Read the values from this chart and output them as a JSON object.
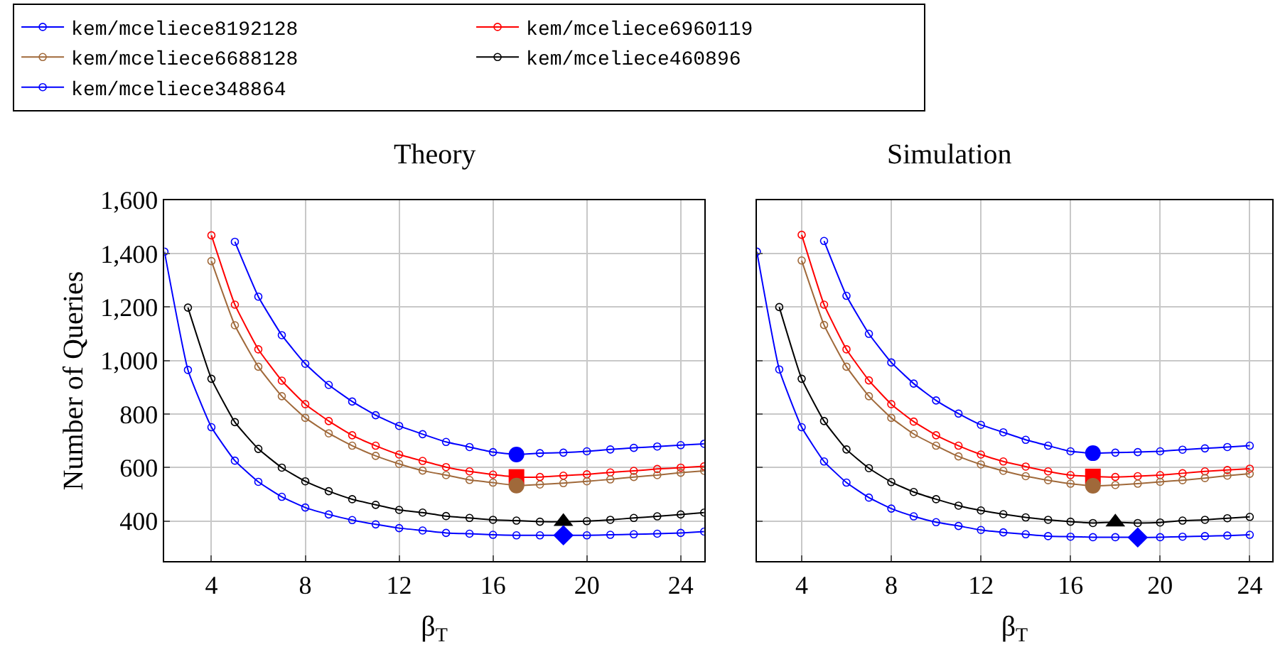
{
  "chart_data": [
    {
      "type": "line",
      "title": "Theory",
      "xlabel": "β$_{T}$",
      "ylabel": "Number of Queries",
      "xlim": [
        2,
        25
      ],
      "ylim": [
        250,
        1600
      ],
      "xticks": [
        4,
        8,
        12,
        16,
        20,
        24
      ],
      "yticks": [
        {
          "value": 400,
          "label": "400"
        },
        {
          "value": 600,
          "label": "600"
        },
        {
          "value": 800,
          "label": "800"
        },
        {
          "value": 1000,
          "label": "1,000"
        },
        {
          "value": 1200,
          "label": "1,200"
        },
        {
          "value": 1400,
          "label": "1,400"
        },
        {
          "value": 1600,
          "label": "1,600"
        }
      ],
      "grid": true,
      "legend": "top",
      "marker": "circle",
      "series": [
        {
          "name": "kem/mceliece8192128",
          "color": "#0000ff",
          "x": [
            5,
            6,
            7,
            8,
            9,
            10,
            11,
            12,
            13,
            14,
            15,
            16,
            17,
            18,
            19,
            20,
            21,
            22,
            23,
            24,
            25
          ],
          "values": [
            1444,
            1239,
            1095,
            988,
            909,
            847,
            796,
            756,
            725,
            696,
            677,
            658,
            649,
            654,
            656,
            661,
            668,
            674,
            679,
            684,
            689
          ]
        },
        {
          "name": "kem/mceliece6960119",
          "color": "#ff0000",
          "x": [
            4,
            5,
            6,
            7,
            8,
            9,
            10,
            11,
            12,
            13,
            14,
            15,
            16,
            17,
            18,
            19,
            20,
            21,
            22,
            23,
            24,
            25
          ],
          "values": [
            1468,
            1209,
            1042,
            925,
            837,
            774,
            721,
            682,
            649,
            625,
            602,
            586,
            574,
            565,
            565,
            570,
            575,
            582,
            588,
            595,
            600,
            605
          ]
        },
        {
          "name": "kem/mceliece6688128",
          "color": "#a0693a",
          "x": [
            4,
            5,
            6,
            7,
            8,
            9,
            10,
            11,
            12,
            13,
            14,
            15,
            16,
            17,
            18,
            19,
            20,
            21,
            22,
            23,
            24,
            25
          ],
          "values": [
            1372,
            1132,
            977,
            867,
            786,
            728,
            682,
            644,
            614,
            589,
            572,
            554,
            544,
            533,
            537,
            542,
            549,
            556,
            565,
            572,
            581,
            588
          ]
        },
        {
          "name": "kem/mceliece460896",
          "color": "#000000",
          "x": [
            3,
            4,
            5,
            6,
            7,
            8,
            9,
            10,
            11,
            12,
            13,
            14,
            15,
            16,
            17,
            18,
            19,
            20,
            21,
            22,
            23,
            24,
            25
          ],
          "values": [
            1198,
            932,
            770,
            670,
            600,
            549,
            512,
            482,
            461,
            442,
            432,
            419,
            412,
            405,
            402,
            398,
            398,
            400,
            405,
            412,
            418,
            425,
            432
          ]
        },
        {
          "name": "kem/mceliece348864",
          "color": "#0000ff",
          "x": [
            2,
            3,
            4,
            5,
            6,
            7,
            8,
            9,
            10,
            11,
            12,
            13,
            14,
            15,
            16,
            17,
            18,
            19,
            20,
            21,
            22,
            23,
            24,
            25
          ],
          "values": [
            1407,
            965,
            751,
            626,
            547,
            491,
            451,
            425,
            404,
            388,
            374,
            365,
            356,
            353,
            349,
            347,
            347,
            347,
            347,
            349,
            351,
            353,
            356,
            361
          ]
        },
        {
          "type": "scatter",
          "marker": "circle",
          "color": "#0000ff",
          "x": [
            17
          ],
          "values": [
            649
          ]
        },
        {
          "type": "scatter",
          "marker": "square",
          "color": "#ff0000",
          "x": [
            17
          ],
          "values": [
            565
          ]
        },
        {
          "type": "scatter",
          "marker": "circle",
          "color": "#a0693a",
          "x": [
            17
          ],
          "values": [
            533
          ]
        },
        {
          "type": "scatter",
          "marker": "triangle",
          "color": "#000000",
          "x": [
            19
          ],
          "values": [
            398
          ]
        },
        {
          "type": "scatter",
          "marker": "diamond",
          "color": "#0000ff",
          "x": [
            19
          ],
          "values": [
            347
          ]
        }
      ]
    },
    {
      "type": "line",
      "title": "Simulation",
      "xlabel": "β$_{T}$",
      "xlim": [
        2,
        25
      ],
      "ylim": [
        250,
        1600
      ],
      "xticks": [
        4,
        8,
        12,
        16,
        20,
        24
      ],
      "yticks": [
        400,
        600,
        800,
        1000,
        1200,
        1400,
        1600
      ],
      "tick_labels": "x",
      "grid": true,
      "marker": "circle",
      "series": [
        {
          "color": "#0000ff",
          "x": [
            5,
            6,
            7,
            8,
            9,
            10,
            11,
            12,
            13,
            14,
            15,
            16,
            17,
            18,
            19,
            20,
            21,
            22,
            23,
            24
          ],
          "values": [
            1447,
            1242,
            1100,
            993,
            914,
            851,
            802,
            760,
            732,
            704,
            682,
            661,
            654,
            656,
            658,
            661,
            667,
            672,
            677,
            682
          ]
        },
        {
          "color": "#ff0000",
          "x": [
            4,
            5,
            6,
            7,
            8,
            9,
            10,
            11,
            12,
            13,
            14,
            15,
            16,
            17,
            18,
            19,
            20,
            21,
            22,
            23,
            24
          ],
          "values": [
            1470,
            1209,
            1042,
            926,
            837,
            772,
            721,
            682,
            649,
            623,
            604,
            586,
            572,
            567,
            565,
            568,
            572,
            579,
            586,
            591,
            596
          ]
        },
        {
          "color": "#a0693a",
          "x": [
            4,
            5,
            6,
            7,
            8,
            9,
            10,
            11,
            12,
            13,
            14,
            15,
            16,
            17,
            18,
            19,
            20,
            21,
            22,
            23,
            24
          ],
          "values": [
            1374,
            1133,
            977,
            867,
            786,
            726,
            682,
            642,
            612,
            588,
            568,
            553,
            540,
            532,
            535,
            540,
            547,
            553,
            561,
            570,
            577
          ]
        },
        {
          "color": "#000000",
          "x": [
            3,
            4,
            5,
            6,
            7,
            8,
            9,
            10,
            11,
            12,
            13,
            14,
            15,
            16,
            17,
            18,
            19,
            20,
            21,
            22,
            23,
            24
          ],
          "values": [
            1200,
            932,
            774,
            668,
            598,
            546,
            509,
            482,
            458,
            440,
            426,
            414,
            405,
            398,
            393,
            396,
            393,
            395,
            402,
            405,
            411,
            416
          ]
        },
        {
          "color": "#0000ff",
          "x": [
            2,
            3,
            4,
            5,
            6,
            7,
            8,
            9,
            10,
            11,
            12,
            13,
            14,
            15,
            16,
            17,
            18,
            19,
            20,
            21,
            22,
            23,
            24
          ],
          "values": [
            1407,
            967,
            751,
            623,
            544,
            488,
            447,
            418,
            396,
            382,
            367,
            358,
            351,
            344,
            342,
            340,
            340,
            339,
            340,
            342,
            344,
            346,
            349
          ]
        },
        {
          "type": "scatter",
          "marker": "circle",
          "color": "#0000ff",
          "x": [
            17
          ],
          "values": [
            654
          ]
        },
        {
          "type": "scatter",
          "marker": "square",
          "color": "#ff0000",
          "x": [
            17
          ],
          "values": [
            567
          ]
        },
        {
          "type": "scatter",
          "marker": "circle",
          "color": "#a0693a",
          "x": [
            17
          ],
          "values": [
            532
          ]
        },
        {
          "type": "scatter",
          "marker": "triangle",
          "color": "#000000",
          "x": [
            18
          ],
          "values": [
            396
          ]
        },
        {
          "type": "scatter",
          "marker": "diamond",
          "color": "#0000ff",
          "x": [
            19
          ],
          "values": [
            339
          ]
        }
      ]
    }
  ]
}
